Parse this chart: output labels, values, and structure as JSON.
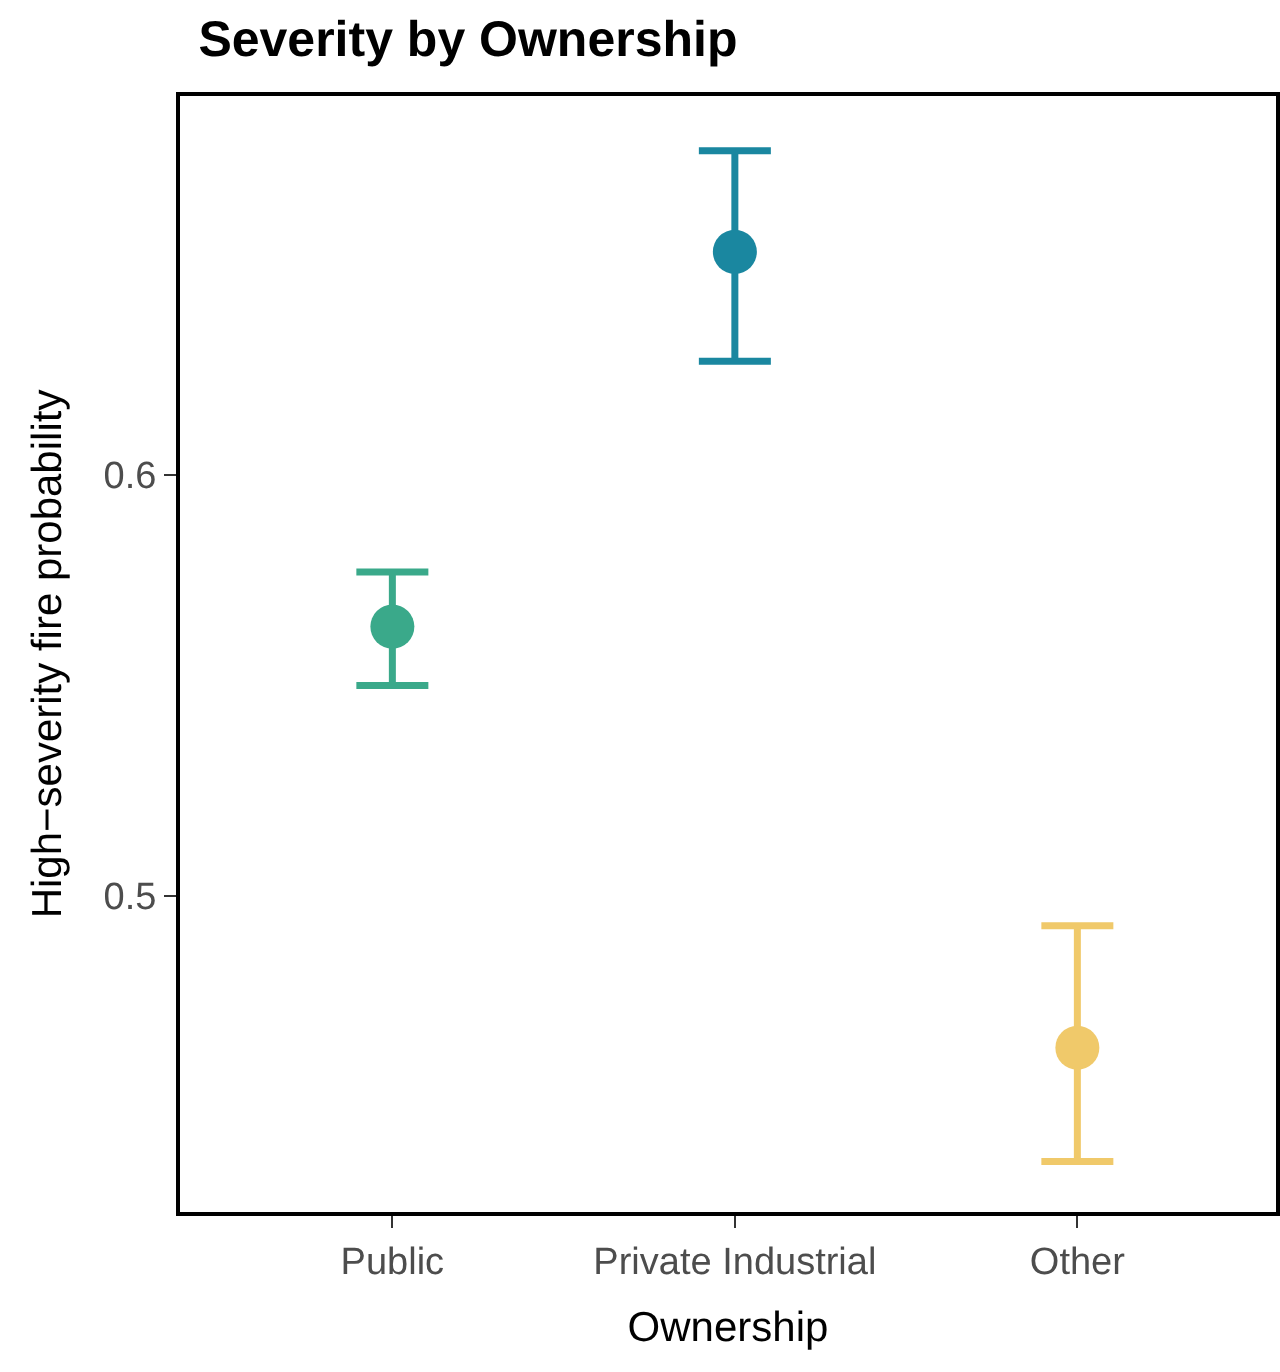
{
  "chart_data": {
    "type": "scatter",
    "title": "Severity by Ownership",
    "xlabel": "Ownership",
    "ylabel": "High−severity fire probability",
    "categories": [
      "Public",
      "Private Industrial",
      "Other"
    ],
    "values": [
      0.564,
      0.653,
      0.464
    ],
    "errors": [
      [
        0.55,
        0.577
      ],
      [
        0.627,
        0.677
      ],
      [
        0.437,
        0.493
      ]
    ],
    "colors": [
      "#3aa98a",
      "#1a87a0",
      "#f0c96a"
    ],
    "ylim": [
      0.425,
      0.69
    ],
    "yticks": [
      0.5,
      0.6
    ],
    "legend": false,
    "marker": "circle"
  }
}
